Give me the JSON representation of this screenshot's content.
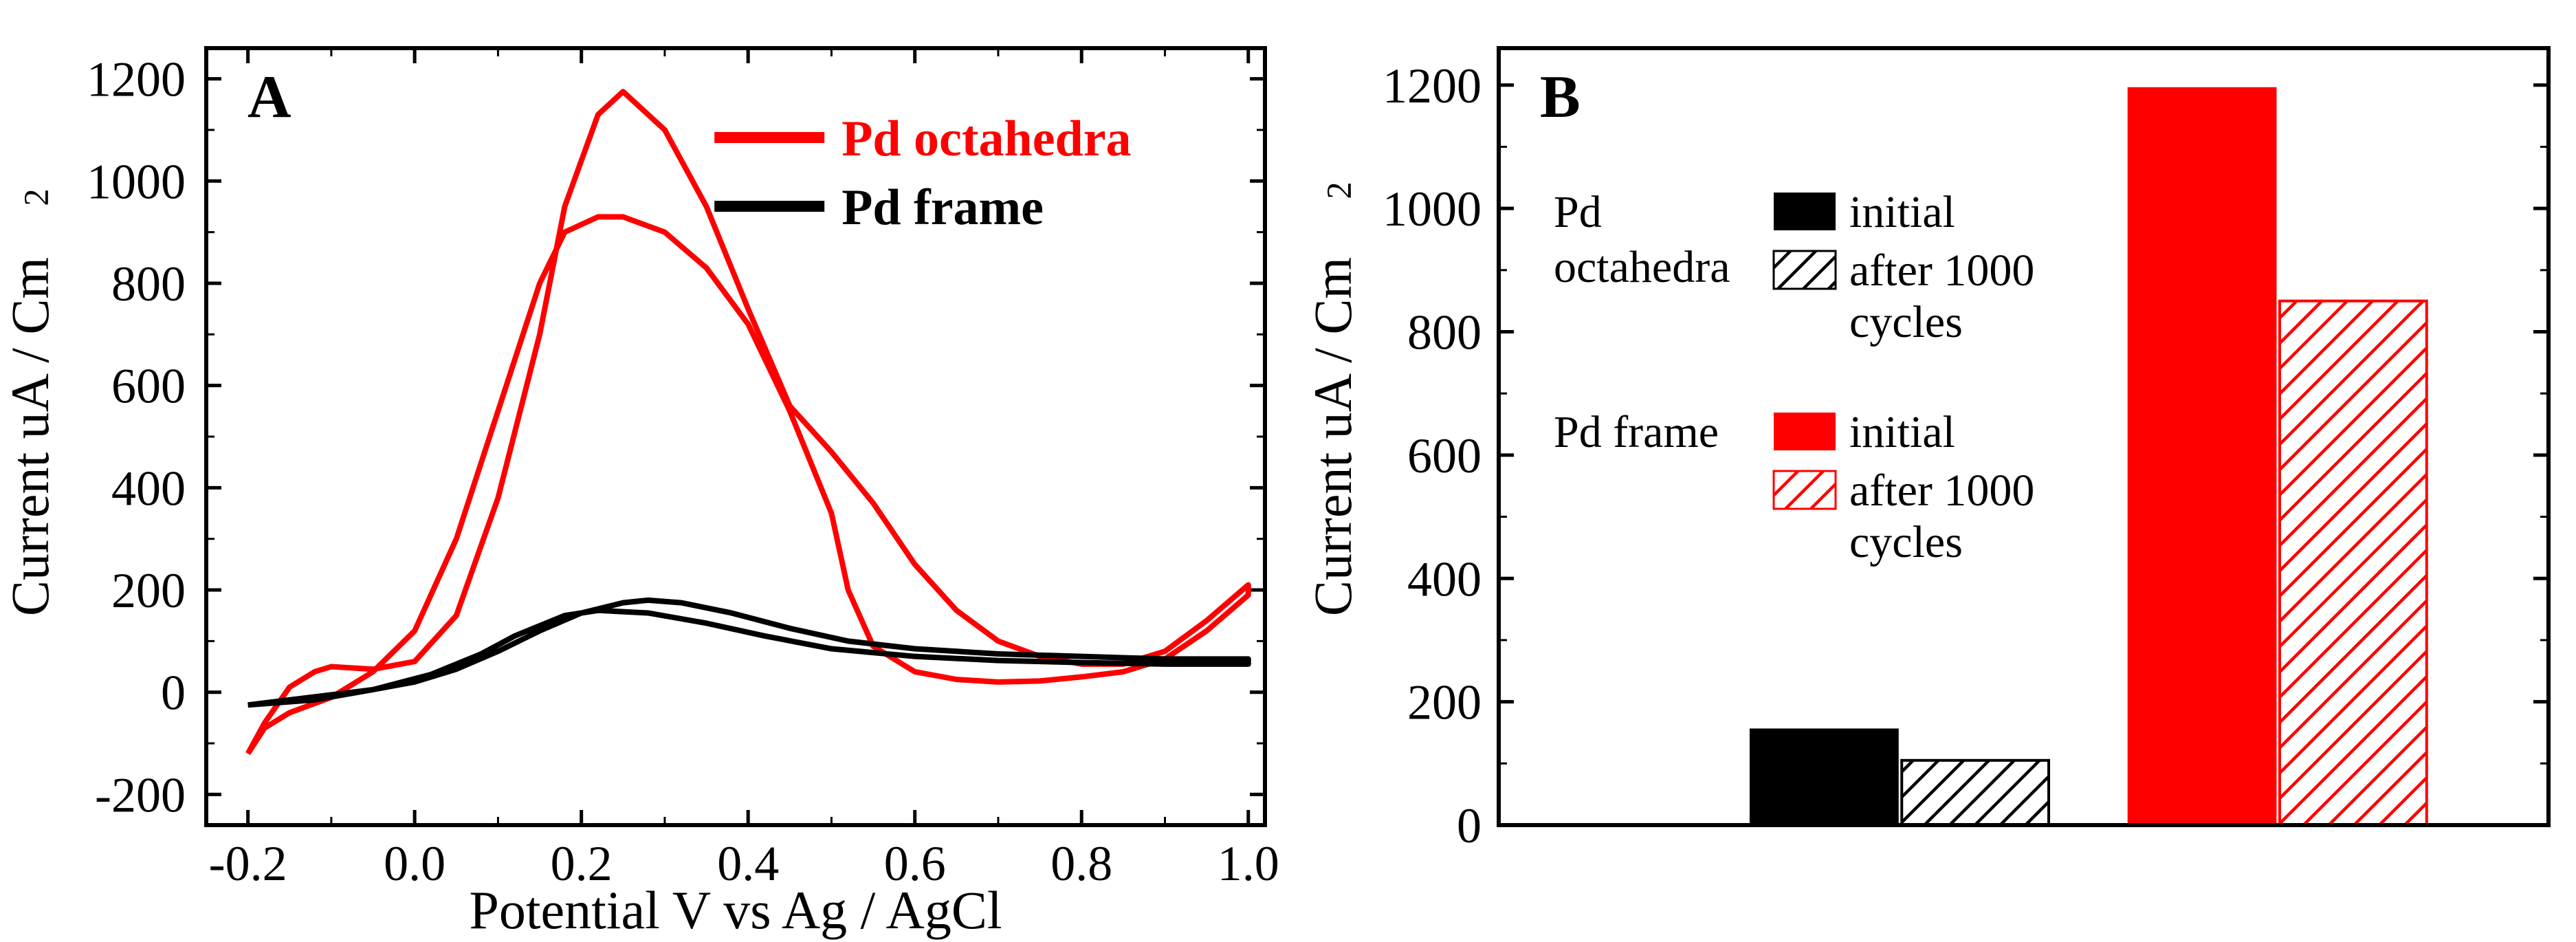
{
  "panelA": {
    "type": "line",
    "label": "A",
    "label_fontsize": 88,
    "xlabel": "Potential V vs  Ag / AgCl",
    "ylabel": "Current uA / Cm",
    "ylabel_sup": "2",
    "axis_fontsize": 78,
    "tick_fontsize": 72,
    "xlim": [
      -0.25,
      1.02
    ],
    "ylim": [
      -260,
      1260
    ],
    "xticks": [
      -0.2,
      0.0,
      0.2,
      0.4,
      0.6,
      0.8,
      1.0
    ],
    "yticks": [
      -200,
      0,
      200,
      400,
      600,
      800,
      1000,
      1200
    ],
    "line_width": 8,
    "colors": {
      "octa": "#ff0000",
      "frame": "#000000",
      "axis": "#000000",
      "bg": "#ffffff"
    },
    "legend": [
      {
        "label": "Pd octahedra",
        "color": "#ff0000"
      },
      {
        "label": "Pd frame",
        "color": "#000000"
      }
    ],
    "series": {
      "octa": [
        [
          -0.2,
          -120
        ],
        [
          -0.18,
          -60
        ],
        [
          -0.15,
          10
        ],
        [
          -0.12,
          40
        ],
        [
          -0.1,
          50
        ],
        [
          -0.05,
          45
        ],
        [
          0.0,
          60
        ],
        [
          0.05,
          150
        ],
        [
          0.1,
          380
        ],
        [
          0.15,
          700
        ],
        [
          0.18,
          950
        ],
        [
          0.22,
          1130
        ],
        [
          0.25,
          1175
        ],
        [
          0.3,
          1100
        ],
        [
          0.35,
          950
        ],
        [
          0.4,
          750
        ],
        [
          0.45,
          560
        ],
        [
          0.5,
          470
        ],
        [
          0.55,
          370
        ],
        [
          0.6,
          250
        ],
        [
          0.65,
          160
        ],
        [
          0.7,
          100
        ],
        [
          0.75,
          70
        ],
        [
          0.8,
          55
        ],
        [
          0.85,
          55
        ],
        [
          0.9,
          80
        ],
        [
          0.95,
          140
        ],
        [
          1.0,
          210
        ],
        [
          1.0,
          190
        ],
        [
          0.95,
          120
        ],
        [
          0.9,
          65
        ],
        [
          0.85,
          40
        ],
        [
          0.8,
          30
        ],
        [
          0.75,
          22
        ],
        [
          0.7,
          20
        ],
        [
          0.65,
          25
        ],
        [
          0.6,
          40
        ],
        [
          0.55,
          90
        ],
        [
          0.52,
          200
        ],
        [
          0.5,
          350
        ],
        [
          0.45,
          550
        ],
        [
          0.4,
          720
        ],
        [
          0.35,
          830
        ],
        [
          0.3,
          900
        ],
        [
          0.25,
          930
        ],
        [
          0.22,
          930
        ],
        [
          0.18,
          900
        ],
        [
          0.15,
          800
        ],
        [
          0.1,
          550
        ],
        [
          0.05,
          300
        ],
        [
          0.0,
          120
        ],
        [
          -0.05,
          40
        ],
        [
          -0.1,
          -10
        ],
        [
          -0.15,
          -40
        ],
        [
          -0.18,
          -70
        ],
        [
          -0.2,
          -120
        ]
      ],
      "frame": [
        [
          -0.2,
          -25
        ],
        [
          -0.15,
          -15
        ],
        [
          -0.1,
          -5
        ],
        [
          -0.05,
          5
        ],
        [
          0.0,
          20
        ],
        [
          0.05,
          45
        ],
        [
          0.1,
          80
        ],
        [
          0.15,
          120
        ],
        [
          0.2,
          155
        ],
        [
          0.25,
          175
        ],
        [
          0.28,
          180
        ],
        [
          0.32,
          175
        ],
        [
          0.38,
          155
        ],
        [
          0.45,
          125
        ],
        [
          0.52,
          100
        ],
        [
          0.6,
          85
        ],
        [
          0.7,
          75
        ],
        [
          0.8,
          70
        ],
        [
          0.9,
          65
        ],
        [
          1.0,
          65
        ],
        [
          1.0,
          55
        ],
        [
          0.9,
          55
        ],
        [
          0.8,
          58
        ],
        [
          0.7,
          62
        ],
        [
          0.6,
          70
        ],
        [
          0.5,
          85
        ],
        [
          0.42,
          110
        ],
        [
          0.35,
          135
        ],
        [
          0.28,
          155
        ],
        [
          0.22,
          160
        ],
        [
          0.18,
          150
        ],
        [
          0.12,
          110
        ],
        [
          0.08,
          75
        ],
        [
          0.02,
          35
        ],
        [
          -0.05,
          5
        ],
        [
          -0.12,
          -15
        ],
        [
          -0.2,
          -25
        ]
      ]
    }
  },
  "panelB": {
    "type": "bar",
    "label": "B",
    "label_fontsize": 88,
    "ylabel": "Current  uA / Cm",
    "ylabel_sup": "2",
    "axis_fontsize": 78,
    "tick_fontsize": 72,
    "ylim": [
      0,
      1260
    ],
    "yticks": [
      0,
      200,
      400,
      600,
      800,
      1000,
      1200
    ],
    "bar_width": 0.14,
    "colors": {
      "octa": "#000000",
      "frame": "#ff0000",
      "axis": "#000000",
      "bg": "#ffffff"
    },
    "groups": [
      {
        "name": "Pd octahedra",
        "x": 0.38,
        "initial": 155,
        "after": 105,
        "color": "#000000"
      },
      {
        "name": "Pd frame",
        "x": 0.74,
        "initial": 1195,
        "after": 850,
        "color": "#ff0000"
      }
    ],
    "legend": {
      "rows": [
        {
          "group": "Pd\noctahedra",
          "items": [
            {
              "swatch": "solid",
              "color": "#000000",
              "label": "initial"
            },
            {
              "swatch": "hatch",
              "color": "#000000",
              "label": "after 1000\ncycles"
            }
          ]
        },
        {
          "group": "Pd frame",
          "items": [
            {
              "swatch": "solid",
              "color": "#ff0000",
              "label": "initial"
            },
            {
              "swatch": "hatch",
              "color": "#ff0000",
              "label": "after 1000\ncycles"
            }
          ]
        }
      ]
    }
  }
}
